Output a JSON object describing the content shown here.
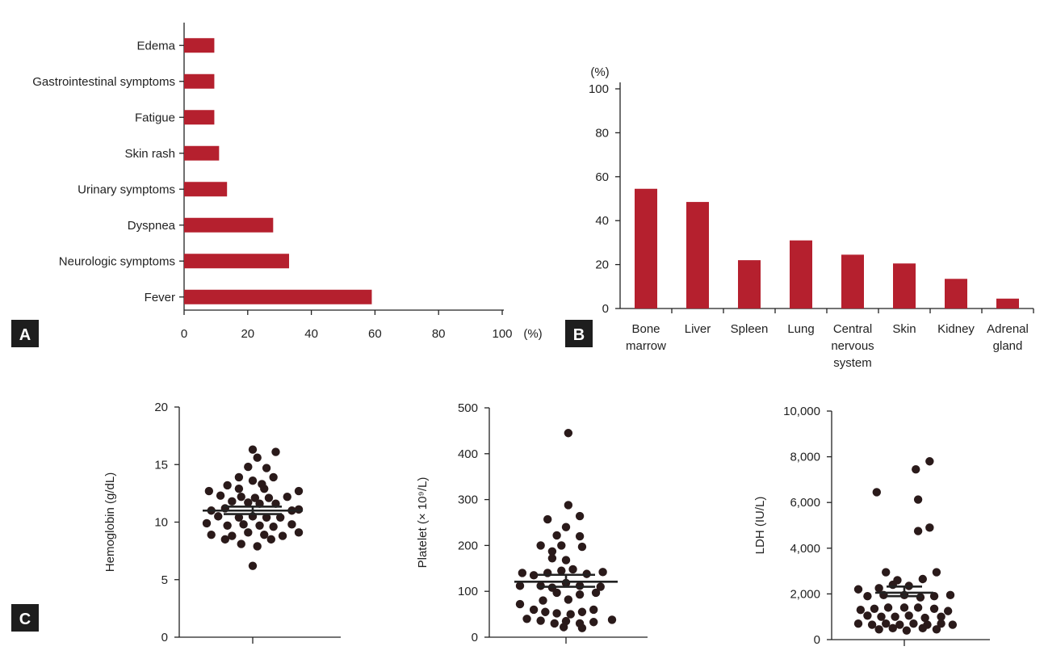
{
  "colors": {
    "bar": "#b5202e",
    "dot": "#2a1a1a",
    "axis": "#222222"
  },
  "chart_data": [
    {
      "panel": "A",
      "type": "bar",
      "orientation": "horizontal",
      "categories": [
        "Edema",
        "Gastrointestinal symptoms",
        "Fatigue",
        "Skin rash",
        "Urinary symptoms",
        "Dyspnea",
        "Neurologic symptoms",
        "Fever"
      ],
      "values": [
        9.5,
        9.5,
        9.5,
        11,
        13.5,
        28,
        33,
        59
      ],
      "xlim": [
        0,
        100
      ],
      "xticks": [
        "0",
        "20",
        "40",
        "60",
        "80",
        "100"
      ],
      "xunit": "(%)",
      "grid": false
    },
    {
      "panel": "B",
      "type": "bar",
      "orientation": "vertical",
      "categories": [
        [
          "Bone",
          "marrow"
        ],
        [
          "Liver"
        ],
        [
          "Spleen"
        ],
        [
          "Lung"
        ],
        [
          "Central",
          "nervous",
          "system"
        ],
        [
          "Skin"
        ],
        [
          "Kidney"
        ],
        [
          "Adrenal",
          "gland"
        ]
      ],
      "values": [
        54.5,
        48.5,
        22,
        31,
        24.5,
        20.5,
        13.5,
        4.5
      ],
      "ylim": [
        0,
        100
      ],
      "yticks": [
        "0",
        "20",
        "40",
        "60",
        "80",
        "100"
      ],
      "yunit": "(%)",
      "grid": false
    },
    {
      "panel": "C",
      "type": "scatter",
      "ylabel": "Hemoglobin (g/dL)",
      "ylim": [
        0,
        20
      ],
      "yticks": [
        "0",
        "5",
        "10",
        "15",
        "20"
      ],
      "mean": 11.0,
      "sem": [
        10.7,
        11.35
      ],
      "points": [
        [
          0,
          16.3
        ],
        [
          0.5,
          16.1
        ],
        [
          0.1,
          15.6
        ],
        [
          -0.1,
          14.8
        ],
        [
          0.3,
          14.7
        ],
        [
          -0.3,
          13.9
        ],
        [
          0.45,
          13.9
        ],
        [
          0,
          13.6
        ],
        [
          0.2,
          13.3
        ],
        [
          -0.55,
          13.2
        ],
        [
          -0.3,
          12.9
        ],
        [
          0.25,
          12.9
        ],
        [
          -0.95,
          12.7
        ],
        [
          1.0,
          12.7
        ],
        [
          -0.7,
          12.3
        ],
        [
          -0.25,
          12.2
        ],
        [
          0.05,
          12.1
        ],
        [
          0.35,
          12.1
        ],
        [
          0.75,
          12.2
        ],
        [
          -0.45,
          11.8
        ],
        [
          -0.1,
          11.7
        ],
        [
          0.15,
          11.6
        ],
        [
          0.5,
          11.6
        ],
        [
          -0.9,
          11.0
        ],
        [
          -0.6,
          11.2
        ],
        [
          0.85,
          11.0
        ],
        [
          1.0,
          11.1
        ],
        [
          -0.75,
          10.5
        ],
        [
          -0.3,
          10.4
        ],
        [
          0.0,
          10.5
        ],
        [
          0.3,
          10.4
        ],
        [
          0.6,
          10.4
        ],
        [
          -1.0,
          9.9
        ],
        [
          -0.55,
          9.7
        ],
        [
          -0.2,
          9.8
        ],
        [
          0.15,
          9.7
        ],
        [
          0.45,
          9.6
        ],
        [
          0.85,
          9.8
        ],
        [
          -0.9,
          8.9
        ],
        [
          -0.45,
          8.8
        ],
        [
          -0.1,
          9.1
        ],
        [
          0.25,
          8.9
        ],
        [
          0.65,
          8.8
        ],
        [
          1.0,
          9.1
        ],
        [
          -0.6,
          8.5
        ],
        [
          0.4,
          8.5
        ],
        [
          -0.25,
          8.1
        ],
        [
          0.1,
          7.9
        ],
        [
          0.0,
          6.2
        ]
      ]
    },
    {
      "panel": "C",
      "type": "scatter",
      "ylabel": "Platelet (× 10⁹/L)",
      "ylim": [
        0,
        500
      ],
      "yticks": [
        "0",
        "100",
        "200",
        "300",
        "400",
        "500"
      ],
      "mean": 121,
      "sem": [
        110,
        136
      ],
      "points": [
        [
          0.05,
          445
        ],
        [
          0.05,
          288
        ],
        [
          -0.4,
          257
        ],
        [
          0.3,
          264
        ],
        [
          0.0,
          240
        ],
        [
          -0.2,
          222
        ],
        [
          0.3,
          220
        ],
        [
          -0.1,
          200
        ],
        [
          0.35,
          197
        ],
        [
          -0.55,
          200
        ],
        [
          -0.3,
          187
        ],
        [
          -0.3,
          172
        ],
        [
          0.0,
          168
        ],
        [
          -0.95,
          140
        ],
        [
          -0.7,
          135
        ],
        [
          -0.4,
          140
        ],
        [
          -0.1,
          145
        ],
        [
          0.15,
          148
        ],
        [
          0.45,
          138
        ],
        [
          0.8,
          142
        ],
        [
          0.75,
          110
        ],
        [
          0.3,
          112
        ],
        [
          0.0,
          118
        ],
        [
          -0.3,
          108
        ],
        [
          -0.55,
          112
        ],
        [
          -1.0,
          112
        ],
        [
          -0.2,
          97
        ],
        [
          0.3,
          93
        ],
        [
          0.65,
          97
        ],
        [
          -0.5,
          80
        ],
        [
          0.05,
          82
        ],
        [
          -1.0,
          72
        ],
        [
          -0.7,
          60
        ],
        [
          -0.45,
          55
        ],
        [
          -0.2,
          52
        ],
        [
          0.1,
          50
        ],
        [
          0.35,
          55
        ],
        [
          0.6,
          60
        ],
        [
          -0.85,
          40
        ],
        [
          -0.55,
          36
        ],
        [
          -0.25,
          30
        ],
        [
          0.0,
          35
        ],
        [
          0.3,
          30
        ],
        [
          0.6,
          33
        ],
        [
          1.0,
          38
        ],
        [
          -0.05,
          22
        ],
        [
          0.35,
          20
        ]
      ]
    },
    {
      "panel": "C",
      "type": "scatter",
      "ylabel": "LDH (IU/L)",
      "ylim": [
        0,
        10000
      ],
      "yticks": [
        "0",
        "2,000",
        "4,000",
        "6,000",
        "8,000",
        "10,000"
      ],
      "mean": 2050,
      "sem": [
        1900,
        2320
      ],
      "points": [
        [
          0.55,
          7800
        ],
        [
          0.25,
          7450
        ],
        [
          -0.6,
          6450
        ],
        [
          0.3,
          6130
        ],
        [
          0.55,
          4900
        ],
        [
          0.3,
          4750
        ],
        [
          -0.4,
          2950
        ],
        [
          0.7,
          2950
        ],
        [
          -0.15,
          2600
        ],
        [
          0.4,
          2650
        ],
        [
          -1.0,
          2200
        ],
        [
          -0.55,
          2250
        ],
        [
          -0.25,
          2400
        ],
        [
          0.1,
          2350
        ],
        [
          -0.8,
          1900
        ],
        [
          -0.45,
          1950
        ],
        [
          0.0,
          1950
        ],
        [
          0.35,
          1850
        ],
        [
          0.65,
          1900
        ],
        [
          1.0,
          1950
        ],
        [
          -0.95,
          1300
        ],
        [
          -0.65,
          1350
        ],
        [
          -0.35,
          1400
        ],
        [
          0.0,
          1400
        ],
        [
          0.3,
          1400
        ],
        [
          0.65,
          1350
        ],
        [
          0.95,
          1250
        ],
        [
          -0.8,
          1050
        ],
        [
          -0.5,
          1000
        ],
        [
          -0.2,
          1000
        ],
        [
          0.1,
          1050
        ],
        [
          0.45,
          950
        ],
        [
          0.8,
          1000
        ],
        [
          -1.0,
          700
        ],
        [
          -0.7,
          650
        ],
        [
          -0.4,
          700
        ],
        [
          -0.1,
          650
        ],
        [
          0.2,
          700
        ],
        [
          0.5,
          650
        ],
        [
          0.8,
          700
        ],
        [
          1.05,
          650
        ],
        [
          -0.55,
          450
        ],
        [
          -0.25,
          500
        ],
        [
          0.05,
          400
        ],
        [
          0.4,
          500
        ],
        [
          0.7,
          450
        ]
      ]
    }
  ],
  "panel_labels": {
    "a": "A",
    "b": "B",
    "c": "C"
  }
}
